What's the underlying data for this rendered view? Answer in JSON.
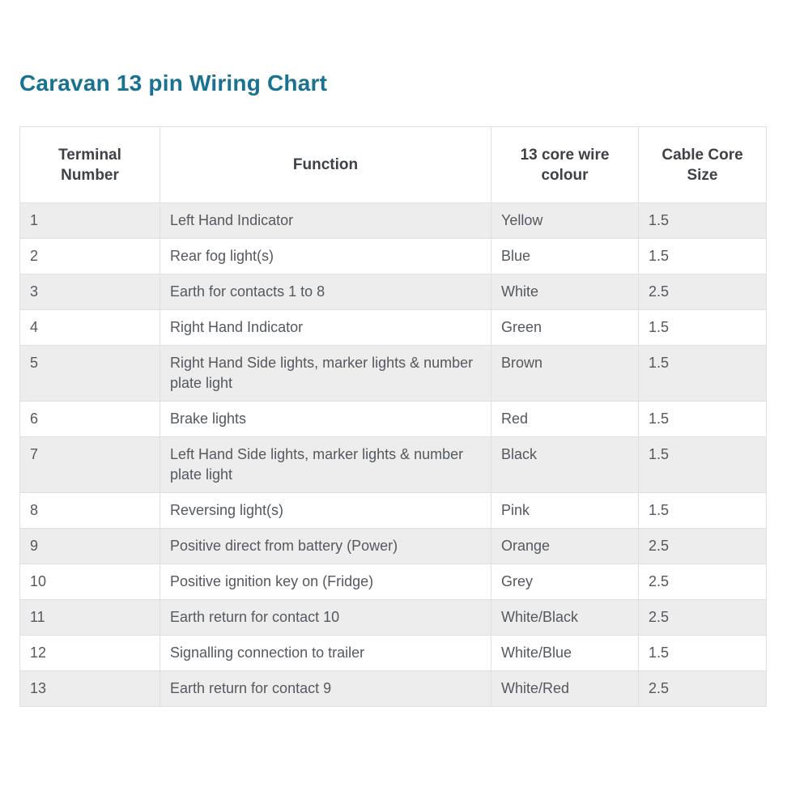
{
  "page_title": "Caravan 13 pin Wiring Chart",
  "colors": {
    "title_accent": "#1a7291",
    "header_text": "#3e4247",
    "body_text": "#54595f",
    "alt_row_background": "#ededed",
    "table_border": "#e0e0e0",
    "page_background": "#ffffff"
  },
  "table": {
    "headers": [
      "Terminal Number",
      "Function",
      "13 core wire colour",
      "Cable Core Size"
    ],
    "rows": [
      {
        "terminal": "1",
        "function": "Left Hand Indicator",
        "wire_colour": "Yellow",
        "cable_core_size": "1.5"
      },
      {
        "terminal": "2",
        "function": "Rear fog light(s)",
        "wire_colour": "Blue",
        "cable_core_size": "1.5"
      },
      {
        "terminal": "3",
        "function": "Earth for contacts 1 to 8",
        "wire_colour": "White",
        "cable_core_size": "2.5"
      },
      {
        "terminal": "4",
        "function": "Right Hand Indicator",
        "wire_colour": "Green",
        "cable_core_size": "1.5"
      },
      {
        "terminal": "5",
        "function": "Right Hand Side lights, marker lights & number plate light",
        "wire_colour": "Brown",
        "cable_core_size": "1.5"
      },
      {
        "terminal": "6",
        "function": "Brake lights",
        "wire_colour": "Red",
        "cable_core_size": "1.5"
      },
      {
        "terminal": "7",
        "function": "Left Hand Side lights, marker lights & number plate light",
        "wire_colour": "Black",
        "cable_core_size": "1.5"
      },
      {
        "terminal": "8",
        "function": "Reversing light(s)",
        "wire_colour": "Pink",
        "cable_core_size": "1.5"
      },
      {
        "terminal": "9",
        "function": "Positive direct from battery (Power)",
        "wire_colour": "Orange",
        "cable_core_size": "2.5"
      },
      {
        "terminal": "10",
        "function": "Positive ignition key on (Fridge)",
        "wire_colour": "Grey",
        "cable_core_size": "2.5"
      },
      {
        "terminal": "11",
        "function": "Earth return for contact 10",
        "wire_colour": "White/Black",
        "cable_core_size": "2.5"
      },
      {
        "terminal": "12",
        "function": "Signalling connection to trailer",
        "wire_colour": "White/Blue",
        "cable_core_size": "1.5"
      },
      {
        "terminal": "13",
        "function": "Earth return for contact 9",
        "wire_colour": "White/Red",
        "cable_core_size": "2.5"
      }
    ]
  }
}
